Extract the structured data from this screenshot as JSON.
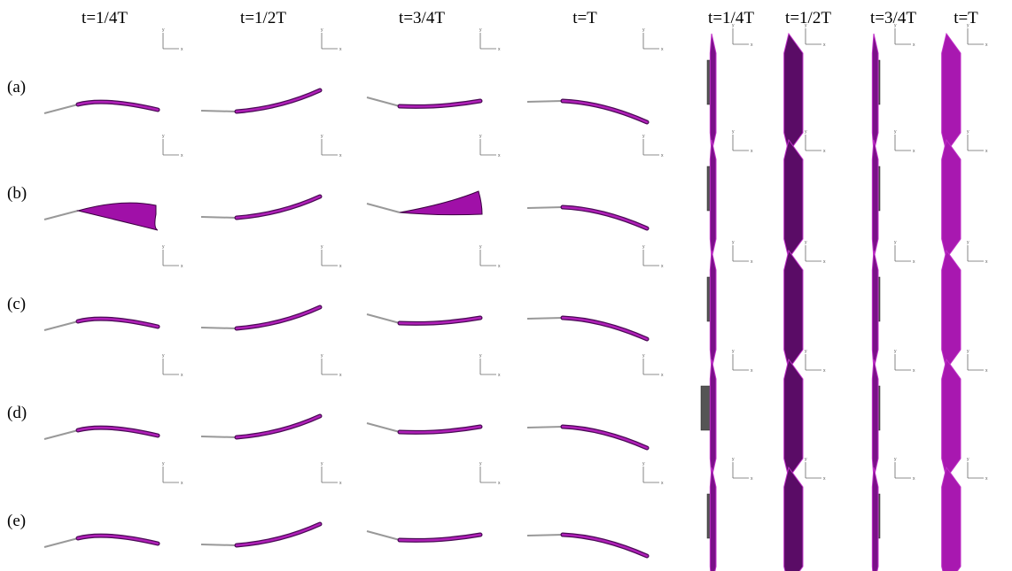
{
  "column_headers": [
    "t=1/4T",
    "t=1/2T",
    "t=3/4T",
    "t=T",
    "t=1/4T",
    "t=1/2T",
    "t=3/4T",
    "t=T"
  ],
  "row_labels": [
    "(a)",
    "(b)",
    "(c)",
    "(d)",
    "(e)"
  ],
  "axis_labels": {
    "y": "y",
    "x": "x"
  }
}
